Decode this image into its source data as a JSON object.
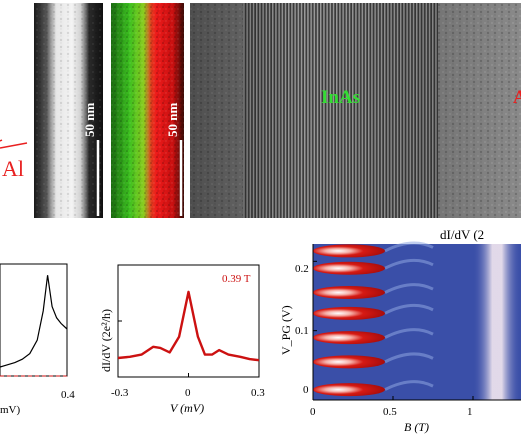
{
  "top_row": {
    "left_label": "Al",
    "haadf_scalebar": "50 nm",
    "eds_scalebar": "50 nm",
    "hrtem_label_inas": "InAs",
    "hrtem_label_right": "A"
  },
  "colors": {
    "al_red": "#e82020",
    "inas_green": "#33dd33",
    "trace_red": "#cc1111",
    "heatmap_bg": "#3a4fa8",
    "heatmap_hot": "#c81010"
  },
  "chart_data": [
    {
      "type": "line",
      "panel": "left-partial",
      "x": [
        -0.05,
        0.0,
        0.05,
        0.1,
        0.15,
        0.2,
        0.24,
        0.27,
        0.3,
        0.33,
        0.36,
        0.4
      ],
      "y": [
        0.08,
        0.1,
        0.12,
        0.15,
        0.2,
        0.32,
        0.58,
        0.9,
        0.62,
        0.52,
        0.47,
        0.42
      ],
      "xticks": [
        "0.4"
      ],
      "xlabel": "mV)",
      "reference_line": "dashed red"
    },
    {
      "type": "line",
      "panel": "middle",
      "annotation": "0.39 T",
      "x": [
        -0.3,
        -0.25,
        -0.2,
        -0.15,
        -0.12,
        -0.08,
        -0.04,
        0.0,
        0.04,
        0.07,
        0.1,
        0.13,
        0.17,
        0.22,
        0.26,
        0.3
      ],
      "y": [
        0.17,
        0.18,
        0.2,
        0.27,
        0.26,
        0.22,
        0.36,
        0.76,
        0.36,
        0.2,
        0.2,
        0.24,
        0.2,
        0.18,
        0.16,
        0.15
      ],
      "xticks": [
        "-0.3",
        "0",
        "0.3"
      ],
      "xlabel": "V (mV)",
      "ylabel": "dI/dV (2e²/h)"
    },
    {
      "type": "heatmap",
      "panel": "right",
      "title": "dI/dV (2",
      "xticks": [
        "0",
        "0.5",
        "1"
      ],
      "yticks": [
        "0",
        "0.1",
        "0.2"
      ],
      "xlabel": "B (T)",
      "ylabel": "V_PG (V)",
      "red_lobe_centers_vpg": [
        0.015,
        0.055,
        0.09,
        0.125,
        0.155,
        0.19,
        0.215
      ],
      "red_lobe_extent_b": [
        0.0,
        0.45
      ],
      "bright_band_b": [
        1.0,
        1.3
      ]
    }
  ]
}
